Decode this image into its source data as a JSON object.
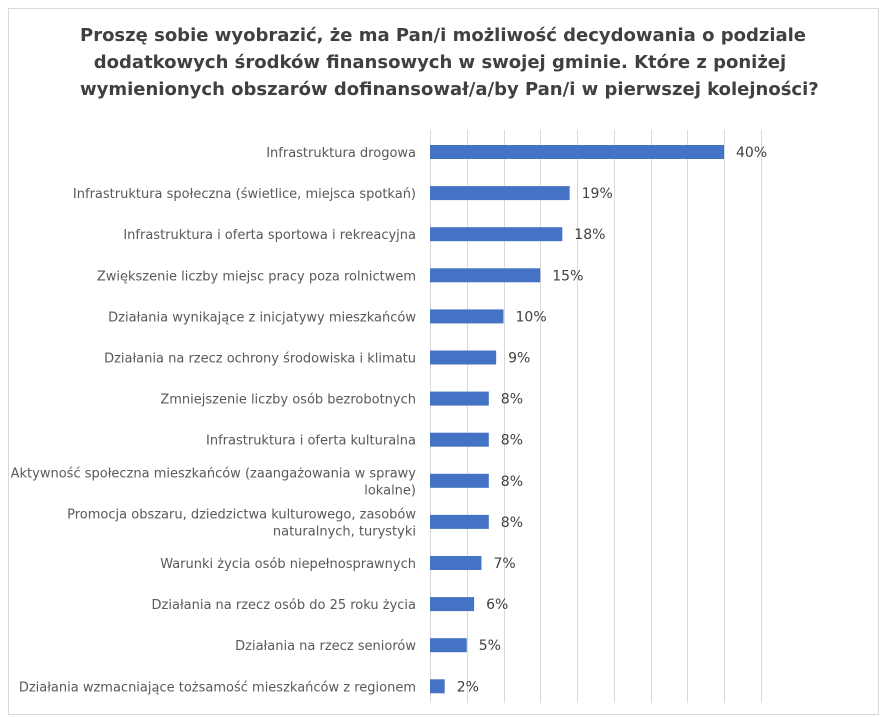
{
  "chart_data": {
    "type": "bar",
    "orientation": "horizontal",
    "title_lines": [
      "Proszę sobie wyobrazić, że ma Pan/i możliwość decydowania o podziale",
      "dodatkowych środków finansowych w swojej gminie. Które z poniżej",
      "wymienionych obszarów dofinansował/a/by Pan/i w pierwszej kolejności?"
    ],
    "categories": [
      [
        "Infrastruktura drogowa"
      ],
      [
        "Infrastruktura społeczna (świetlice, miejsca spotkań)"
      ],
      [
        "Infrastruktura i oferta sportowa i rekreacyjna"
      ],
      [
        "Zwiększenie liczby miejsc pracy poza rolnictwem"
      ],
      [
        "Działania wynikające z inicjatywy mieszkańców"
      ],
      [
        "Działania na rzecz ochrony środowiska i klimatu"
      ],
      [
        "Zmniejszenie liczby osób bezrobotnych"
      ],
      [
        "Infrastruktura i oferta kulturalna"
      ],
      [
        "Aktywność społeczna mieszkańców (zaangażowania w sprawy",
        "lokalne)"
      ],
      [
        "Promocja obszaru, dziedzictwa kulturowego, zasobów",
        "naturalnych, turystyki"
      ],
      [
        "Warunki życia osób niepełnosprawnych"
      ],
      [
        "Działania na rzecz osób do 25 roku życia"
      ],
      [
        "Działania na rzecz seniorów"
      ],
      [
        "Działania wzmacniające tożsamość mieszkańców z regionem"
      ]
    ],
    "values": [
      40,
      19,
      18,
      15,
      10,
      9,
      8,
      8,
      8,
      8,
      7,
      6,
      5,
      2
    ],
    "value_labels": [
      "40%",
      "19%",
      "18%",
      "15%",
      "10%",
      "9%",
      "8%",
      "8%",
      "8%",
      "8%",
      "7%",
      "6%",
      "5%",
      "2%"
    ],
    "xlim": [
      0,
      45
    ],
    "gridlines": [
      0,
      5,
      10,
      15,
      20,
      25,
      30,
      35,
      40,
      45
    ],
    "grid": true,
    "legend": "none",
    "bar_color": "#4472c4",
    "grid_color": "#d9d9d9"
  }
}
